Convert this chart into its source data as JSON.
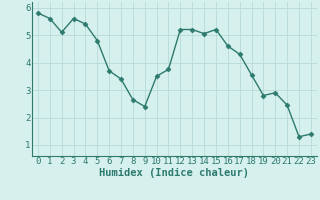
{
  "x": [
    0,
    1,
    2,
    3,
    4,
    5,
    6,
    7,
    8,
    9,
    10,
    11,
    12,
    13,
    14,
    15,
    16,
    17,
    18,
    19,
    20,
    21,
    22,
    23
  ],
  "y": [
    5.8,
    5.6,
    5.1,
    5.6,
    5.4,
    4.8,
    3.7,
    3.4,
    2.65,
    2.4,
    3.5,
    3.75,
    5.2,
    5.2,
    5.05,
    5.2,
    4.6,
    4.3,
    3.55,
    2.8,
    2.9,
    2.45,
    1.3,
    1.4
  ],
  "line_color": "#2d7a6e",
  "marker": "D",
  "marker_size": 2.5,
  "bg_color": "#d6f0ee",
  "grid_color": "#b8dbd8",
  "xlabel": "Humidex (Indice chaleur)",
  "ylim": [
    0.6,
    6.2
  ],
  "xlim": [
    -0.5,
    23.5
  ],
  "yticks": [
    1,
    2,
    3,
    4,
    5,
    6
  ],
  "xticks": [
    0,
    1,
    2,
    3,
    4,
    5,
    6,
    7,
    8,
    9,
    10,
    11,
    12,
    13,
    14,
    15,
    16,
    17,
    18,
    19,
    20,
    21,
    22,
    23
  ],
  "xlabel_fontsize": 7.5,
  "tick_fontsize": 6.5,
  "linewidth": 1.0
}
